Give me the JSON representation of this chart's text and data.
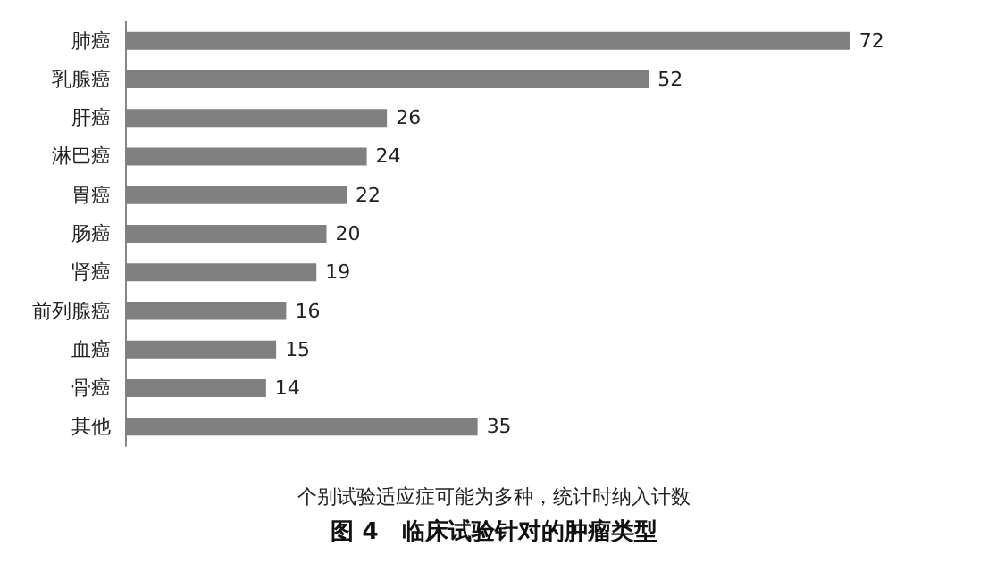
{
  "chart_data": {
    "type": "bar",
    "orientation": "horizontal",
    "title": "图 4　临床试验针对的肿瘤类型",
    "annotations": [
      "个别试验适应症可能为多种，统计时纳入计数"
    ],
    "categories": [
      "肺癌",
      "乳腺癌",
      "肝癌",
      "淋巴癌",
      "胃癌",
      "肠癌",
      "肾癌",
      "前列腺癌",
      "血癌",
      "骨癌",
      "其他"
    ],
    "values": [
      72,
      52,
      26,
      24,
      22,
      20,
      19,
      16,
      15,
      14,
      35
    ],
    "color": "#808080",
    "data_labels": true
  }
}
